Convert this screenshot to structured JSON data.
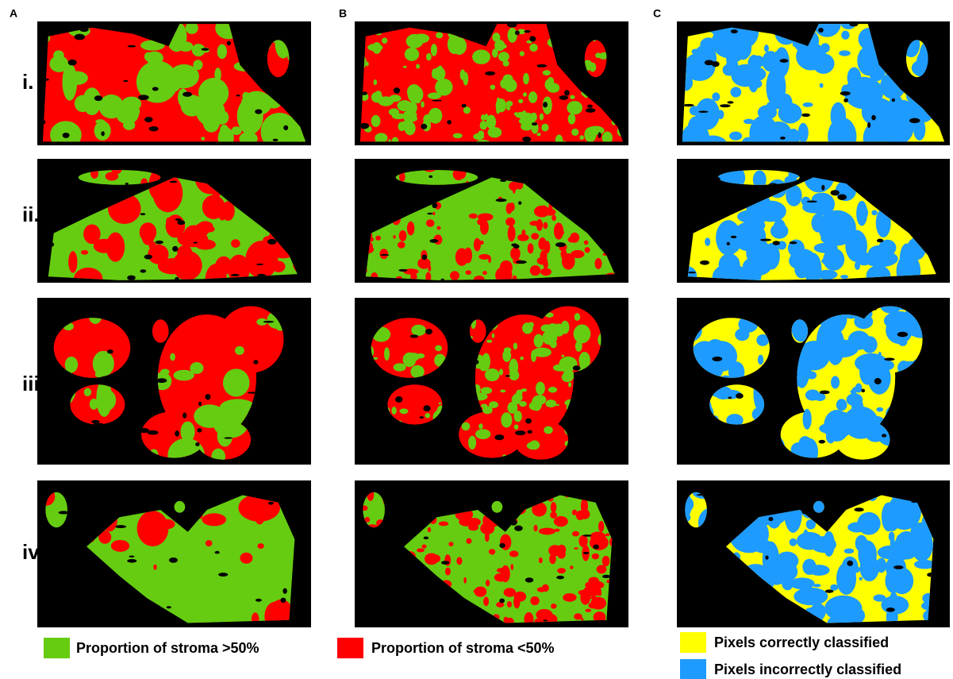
{
  "columns": [
    "A",
    "B",
    "C"
  ],
  "rows": [
    "i.",
    "ii.",
    "iii.",
    "iv."
  ],
  "legend": [
    {
      "label": "Proportion of stroma >50%",
      "color": "#66cc11"
    },
    {
      "label": "Proportion of stroma <50%",
      "color": "#ff0000"
    },
    {
      "label": "Pixels correctly classified",
      "color": "#ffff00"
    },
    {
      "label": "Pixels incorrectly classified",
      "color": "#1e9bff"
    }
  ]
}
